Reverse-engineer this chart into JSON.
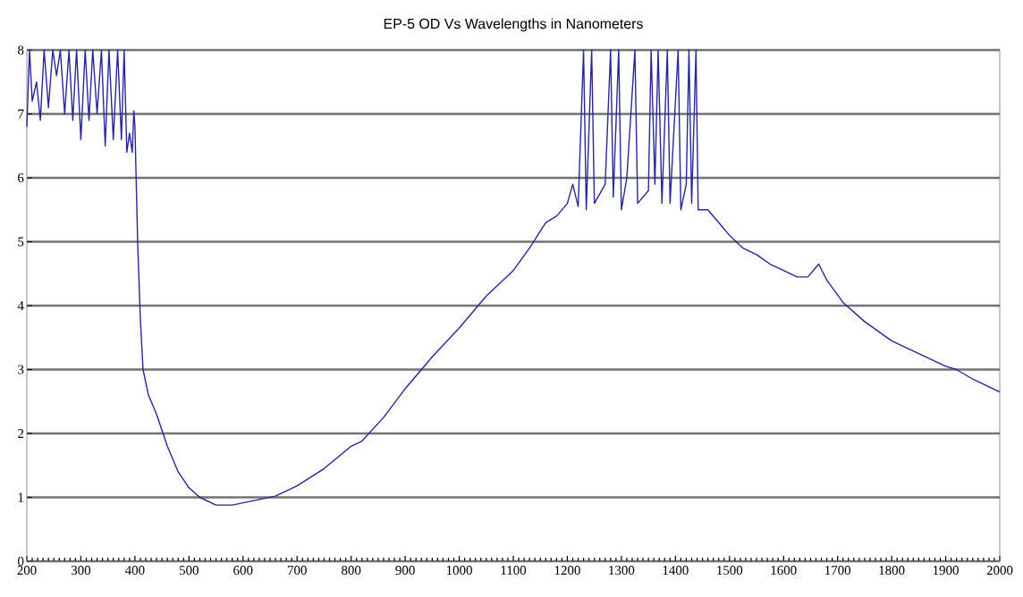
{
  "chart_data": {
    "type": "line",
    "title": "EP-5  OD Vs Wavelengths in Nanometers",
    "x": [
      200,
      205,
      210,
      218,
      225,
      232,
      240,
      248,
      255,
      262,
      270,
      278,
      285,
      292,
      300,
      308,
      315,
      322,
      330,
      338,
      345,
      352,
      360,
      368,
      375,
      380,
      385,
      390,
      395,
      398,
      400,
      405,
      410,
      415,
      425,
      440,
      460,
      480,
      500,
      520,
      550,
      580,
      620,
      660,
      700,
      750,
      800,
      820,
      860,
      900,
      950,
      1000,
      1050,
      1100,
      1130,
      1160,
      1180,
      1200,
      1210,
      1220,
      1230,
      1235,
      1245,
      1250,
      1270,
      1280,
      1285,
      1295,
      1300,
      1310,
      1325,
      1330,
      1350,
      1355,
      1362,
      1368,
      1375,
      1385,
      1390,
      1405,
      1410,
      1420,
      1425,
      1430,
      1438,
      1442,
      1460,
      1480,
      1500,
      1525,
      1550,
      1575,
      1600,
      1625,
      1645,
      1665,
      1680,
      1710,
      1750,
      1800,
      1850,
      1900,
      1920,
      1950,
      2000
    ],
    "series": [
      {
        "color": "#27279a",
        "values": [
          6.8,
          8,
          7.2,
          7.5,
          6.9,
          8,
          7.1,
          8,
          7.6,
          8,
          7.0,
          8,
          6.9,
          8,
          6.6,
          8,
          6.9,
          8,
          7.0,
          8,
          6.5,
          8,
          6.6,
          8,
          6.6,
          8,
          6.4,
          6.7,
          6.4,
          7.05,
          6.8,
          5.0,
          3.8,
          3.0,
          2.6,
          2.3,
          1.8,
          1.4,
          1.15,
          1.0,
          0.88,
          0.88,
          0.95,
          1.02,
          1.18,
          1.45,
          1.8,
          1.88,
          2.25,
          2.7,
          3.2,
          3.65,
          4.15,
          4.55,
          4.9,
          5.3,
          5.4,
          5.6,
          5.9,
          5.55,
          8,
          5.5,
          8,
          5.6,
          5.9,
          8,
          5.7,
          8,
          5.5,
          6.0,
          8,
          5.6,
          5.8,
          8,
          5.9,
          8,
          5.6,
          8,
          5.6,
          8,
          5.5,
          5.9,
          8,
          5.6,
          8,
          5.5,
          5.5,
          5.3,
          5.1,
          4.9,
          4.8,
          4.65,
          4.55,
          4.45,
          4.45,
          4.65,
          4.4,
          4.05,
          3.75,
          3.45,
          3.25,
          3.05,
          3.0,
          2.85,
          2.65
        ]
      }
    ],
    "xlim": [
      200,
      2000
    ],
    "xticks": [
      200,
      300,
      400,
      500,
      600,
      700,
      800,
      900,
      1000,
      1100,
      1200,
      1300,
      1400,
      1500,
      1600,
      1700,
      1800,
      1900,
      2000
    ],
    "ylim": [
      0,
      8
    ],
    "yticks": [
      0,
      1,
      2,
      3,
      4,
      5,
      6,
      7,
      8
    ],
    "grid": "y",
    "marker": "none",
    "line_style": "solid"
  }
}
